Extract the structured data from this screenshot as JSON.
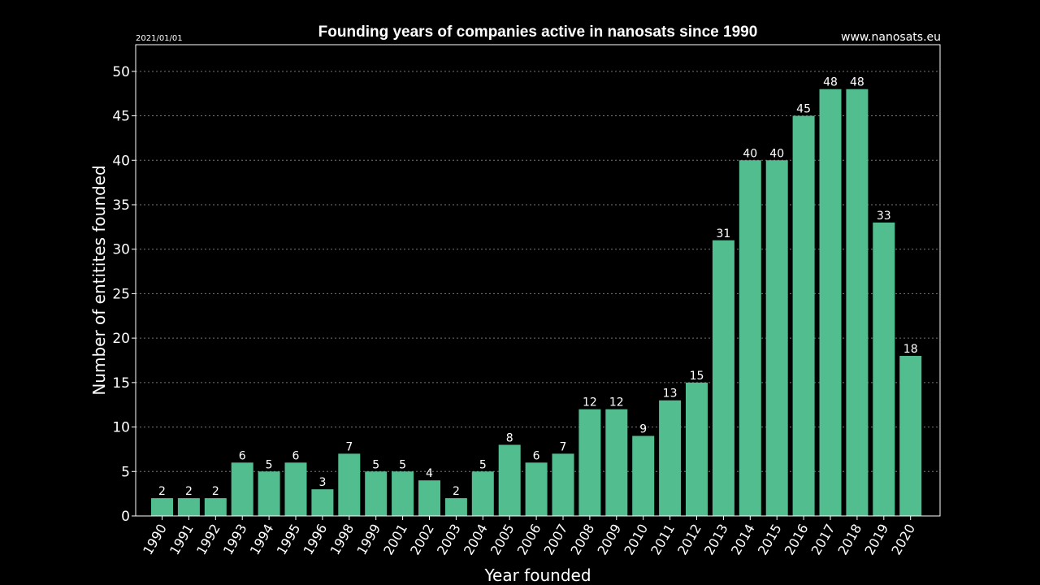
{
  "chart_data": {
    "type": "bar",
    "title": "Founding years of companies active in nanosats since 1990",
    "date_label": "2021/01/01",
    "source_label": "www.nanosats.eu",
    "xlabel": "Year founded",
    "ylabel": "Number of entitites founded",
    "ylim": [
      0,
      53
    ],
    "yticks": [
      0,
      5,
      10,
      15,
      20,
      25,
      30,
      35,
      40,
      45,
      50
    ],
    "grid": true,
    "bar_color": "#52be8f",
    "categories": [
      "1990",
      "1991",
      "1992",
      "1993",
      "1994",
      "1995",
      "1996",
      "1998",
      "1999",
      "2001",
      "2002",
      "2003",
      "2004",
      "2005",
      "2006",
      "2007",
      "2008",
      "2009",
      "2010",
      "2011",
      "2012",
      "2013",
      "2014",
      "2015",
      "2016",
      "2017",
      "2018",
      "2019",
      "2020"
    ],
    "values": [
      2,
      2,
      2,
      6,
      5,
      6,
      3,
      7,
      5,
      5,
      4,
      2,
      5,
      8,
      6,
      7,
      12,
      12,
      9,
      13,
      15,
      31,
      40,
      40,
      45,
      48,
      48,
      33,
      18
    ]
  }
}
